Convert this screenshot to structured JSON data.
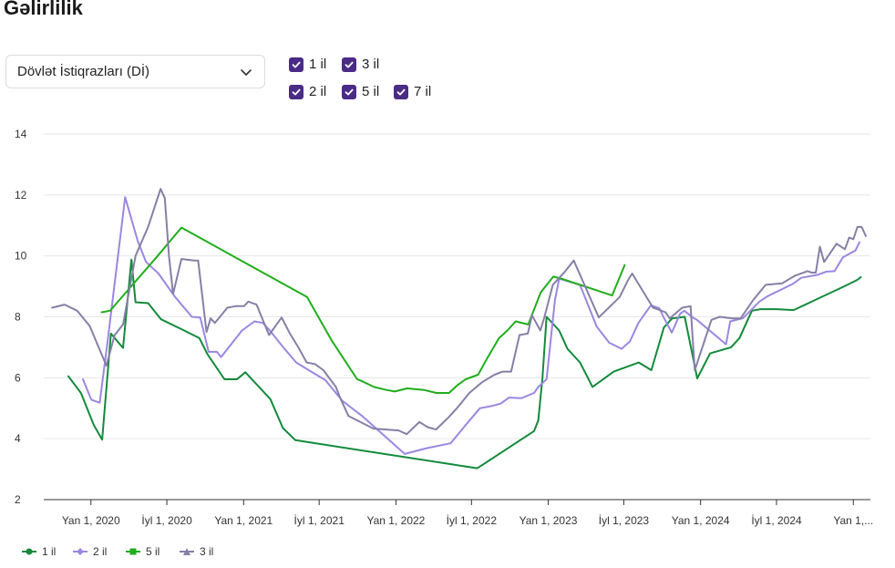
{
  "page": {
    "title": "Gəlirlilik"
  },
  "controls": {
    "select_value": "Dövlət İstiqrazları (Dİ)",
    "checkboxes": [
      {
        "label": "1 il",
        "checked": true
      },
      {
        "label": "3 il",
        "checked": true
      },
      {
        "label": "2 il",
        "checked": true
      },
      {
        "label": "5 il",
        "checked": true
      },
      {
        "label": "7 il",
        "checked": true
      }
    ]
  },
  "colors": {
    "1 il": "#138a3c",
    "2 il": "#9b87e0",
    "5 il": "#20ad1c",
    "3 il": "#8580a6",
    "checkbox": "#4a2b86"
  },
  "chart_data": {
    "type": "line",
    "y_ticks": [
      "2",
      "4",
      "6",
      "8",
      "10",
      "12",
      "14"
    ],
    "ylim": [
      2,
      14
    ],
    "x_ticks": [
      {
        "label": "Yan 1, 2020",
        "x": "2020-01-01"
      },
      {
        "label": "İyl 1, 2020",
        "x": "2020-07-01"
      },
      {
        "label": "Yan 1, 2021",
        "x": "2021-01-01"
      },
      {
        "label": "İyl 1, 2021",
        "x": "2021-07-01"
      },
      {
        "label": "Yan 1, 2022",
        "x": "2022-01-01"
      },
      {
        "label": "İyl 1, 2022",
        "x": "2022-07-01"
      },
      {
        "label": "Yan 1, 2023",
        "x": "2023-01-01"
      },
      {
        "label": "İyl 1, 2023",
        "x": "2023-07-01"
      },
      {
        "label": "Yan 1, 2024",
        "x": "2024-01-01"
      },
      {
        "label": "İyl 1, 2024",
        "x": "2024-07-01"
      },
      {
        "label": "Yan 1,...",
        "x": "2025-01-01"
      }
    ],
    "xlim": [
      "2019-09-10",
      "2025-01-31"
    ],
    "grid": true,
    "legend_position": "bottom-left",
    "series": [
      {
        "name": "1 il",
        "marker": "circle",
        "points": [
          [
            "2019-11-08",
            6.05
          ],
          [
            "2019-12-08",
            5.5
          ],
          [
            "2020-01-08",
            4.45
          ],
          [
            "2020-01-28",
            3.97
          ],
          [
            "2020-02-18",
            7.45
          ],
          [
            "2020-03-18",
            6.98
          ],
          [
            "2020-04-07",
            9.88
          ],
          [
            "2020-04-17",
            8.48
          ],
          [
            "2020-05-17",
            8.45
          ],
          [
            "2020-06-17",
            7.92
          ],
          [
            "2020-08-07",
            7.58
          ],
          [
            "2020-09-17",
            7.3
          ],
          [
            "2020-10-06",
            6.78
          ],
          [
            "2020-11-16",
            5.95
          ],
          [
            "2020-12-16",
            5.95
          ],
          [
            "2021-01-05",
            6.18
          ],
          [
            "2021-03-06",
            5.3
          ],
          [
            "2021-04-05",
            4.35
          ],
          [
            "2021-05-05",
            3.95
          ],
          [
            "2022-07-15",
            3.03
          ],
          [
            "2022-11-28",
            4.25
          ],
          [
            "2022-12-08",
            4.6
          ],
          [
            "2022-12-18",
            6.0
          ],
          [
            "2022-12-28",
            8.0
          ],
          [
            "2023-01-27",
            7.55
          ],
          [
            "2023-02-16",
            6.95
          ],
          [
            "2023-03-18",
            6.5
          ],
          [
            "2023-04-17",
            5.7
          ],
          [
            "2023-06-07",
            6.2
          ],
          [
            "2023-08-06",
            6.5
          ],
          [
            "2023-09-05",
            6.25
          ],
          [
            "2023-10-05",
            7.65
          ],
          [
            "2023-10-25",
            7.95
          ],
          [
            "2023-11-24",
            8.0
          ],
          [
            "2023-12-24",
            5.98
          ],
          [
            "2024-01-24",
            6.8
          ],
          [
            "2024-03-14",
            7.0
          ],
          [
            "2024-04-03",
            7.3
          ],
          [
            "2024-05-03",
            8.2
          ],
          [
            "2024-05-23",
            8.25
          ],
          [
            "2024-07-02",
            8.25
          ],
          [
            "2024-08-11",
            8.22
          ],
          [
            "2024-12-10",
            9.0
          ],
          [
            "2025-01-09",
            9.2
          ],
          [
            "2025-01-19",
            9.3
          ]
        ]
      },
      {
        "name": "2 il",
        "marker": "diamond",
        "points": [
          [
            "2019-12-13",
            5.95
          ],
          [
            "2020-01-02",
            5.28
          ],
          [
            "2020-01-22",
            5.18
          ],
          [
            "2020-02-11",
            7.3
          ],
          [
            "2020-03-23",
            11.93
          ],
          [
            "2020-04-22",
            10.5
          ],
          [
            "2020-05-12",
            9.8
          ],
          [
            "2020-06-11",
            9.42
          ],
          [
            "2020-07-21",
            8.65
          ],
          [
            "2020-08-30",
            8.0
          ],
          [
            "2020-09-19",
            7.98
          ],
          [
            "2020-10-09",
            6.85
          ],
          [
            "2020-10-29",
            6.85
          ],
          [
            "2020-11-08",
            6.68
          ],
          [
            "2020-12-28",
            7.55
          ],
          [
            "2021-01-27",
            7.85
          ],
          [
            "2021-02-16",
            7.8
          ],
          [
            "2021-03-08",
            7.5
          ],
          [
            "2021-04-07",
            6.98
          ],
          [
            "2021-05-07",
            6.5
          ],
          [
            "2021-06-06",
            6.25
          ],
          [
            "2021-07-16",
            5.92
          ],
          [
            "2021-08-25",
            5.25
          ],
          [
            "2021-10-14",
            4.72
          ],
          [
            "2022-01-22",
            3.5
          ],
          [
            "2022-03-13",
            3.68
          ],
          [
            "2022-05-12",
            3.85
          ],
          [
            "2022-06-11",
            4.35
          ],
          [
            "2022-07-21",
            5.0
          ],
          [
            "2022-08-20",
            5.08
          ],
          [
            "2022-09-09",
            5.15
          ],
          [
            "2022-09-29",
            5.35
          ],
          [
            "2022-10-29",
            5.33
          ],
          [
            "2022-11-28",
            5.5
          ],
          [
            "2022-12-08",
            5.7
          ],
          [
            "2022-12-28",
            5.95
          ],
          [
            "2023-01-17",
            8.55
          ],
          [
            "2023-01-27",
            9.25
          ],
          [
            "2023-03-18",
            9.05
          ],
          [
            "2023-04-27",
            7.68
          ],
          [
            "2023-05-27",
            7.15
          ],
          [
            "2023-06-26",
            6.95
          ],
          [
            "2023-07-16",
            7.2
          ],
          [
            "2023-08-05",
            7.8
          ],
          [
            "2023-09-04",
            8.38
          ],
          [
            "2023-09-24",
            8.28
          ],
          [
            "2023-10-04",
            8.0
          ],
          [
            "2023-10-24",
            7.48
          ],
          [
            "2023-11-13",
            8.1
          ],
          [
            "2023-11-23",
            8.2
          ],
          [
            "2023-12-13",
            7.98
          ],
          [
            "2023-12-23",
            7.9
          ],
          [
            "2024-03-02",
            7.1
          ],
          [
            "2024-03-12",
            7.85
          ],
          [
            "2024-04-11",
            7.95
          ],
          [
            "2024-05-01",
            8.22
          ],
          [
            "2024-05-21",
            8.5
          ],
          [
            "2024-06-10",
            8.68
          ],
          [
            "2024-08-09",
            9.08
          ],
          [
            "2024-08-29",
            9.28
          ],
          [
            "2024-10-08",
            9.38
          ],
          [
            "2024-10-28",
            9.48
          ],
          [
            "2024-11-17",
            9.5
          ],
          [
            "2024-12-07",
            9.95
          ],
          [
            "2024-12-27",
            10.1
          ],
          [
            "2025-01-06",
            10.18
          ],
          [
            "2025-01-16",
            10.45
          ]
        ]
      },
      {
        "name": "5 il",
        "marker": "square",
        "points": [
          [
            "2020-01-27",
            8.15
          ],
          [
            "2020-02-16",
            8.2
          ],
          [
            "2020-06-06",
            9.95
          ],
          [
            "2020-08-05",
            10.93
          ],
          [
            "2021-06-02",
            8.65
          ],
          [
            "2021-08-01",
            7.2
          ],
          [
            "2021-09-30",
            5.95
          ],
          [
            "2021-10-10",
            5.9
          ],
          [
            "2021-11-09",
            5.7
          ],
          [
            "2021-12-09",
            5.6
          ],
          [
            "2021-12-29",
            5.55
          ],
          [
            "2022-01-28",
            5.65
          ],
          [
            "2022-03-09",
            5.6
          ],
          [
            "2022-04-08",
            5.5
          ],
          [
            "2022-05-08",
            5.5
          ],
          [
            "2022-05-28",
            5.75
          ],
          [
            "2022-06-17",
            5.95
          ],
          [
            "2022-07-17",
            6.1
          ],
          [
            "2022-08-06",
            6.6
          ],
          [
            "2022-09-05",
            7.3
          ],
          [
            "2022-09-25",
            7.55
          ],
          [
            "2022-10-15",
            7.85
          ],
          [
            "2022-11-14",
            7.75
          ],
          [
            "2022-12-14",
            8.8
          ],
          [
            "2023-01-13",
            9.32
          ],
          [
            "2023-02-02",
            9.25
          ],
          [
            "2023-06-03",
            8.7
          ],
          [
            "2023-07-03",
            9.7
          ]
        ]
      },
      {
        "name": "3 il",
        "marker": "triangle",
        "points": [
          [
            "2019-09-30",
            8.3
          ],
          [
            "2019-10-30",
            8.4
          ],
          [
            "2019-11-29",
            8.2
          ],
          [
            "2019-12-29",
            7.7
          ],
          [
            "2020-02-07",
            6.4
          ],
          [
            "2020-02-27",
            7.4
          ],
          [
            "2020-03-18",
            7.75
          ],
          [
            "2020-04-17",
            10.0
          ],
          [
            "2020-05-17",
            10.95
          ],
          [
            "2020-06-16",
            12.2
          ],
          [
            "2020-06-26",
            11.9
          ],
          [
            "2020-07-06",
            10.0
          ],
          [
            "2020-07-16",
            8.75
          ],
          [
            "2020-08-05",
            9.9
          ],
          [
            "2020-09-04",
            9.85
          ],
          [
            "2020-09-14",
            9.85
          ],
          [
            "2020-10-04",
            7.5
          ],
          [
            "2020-10-14",
            7.95
          ],
          [
            "2020-10-24",
            7.8
          ],
          [
            "2020-11-23",
            8.3
          ],
          [
            "2020-12-13",
            8.35
          ],
          [
            "2021-01-02",
            8.35
          ],
          [
            "2021-01-12",
            8.5
          ],
          [
            "2021-02-01",
            8.4
          ],
          [
            "2021-03-03",
            7.4
          ],
          [
            "2021-04-02",
            7.98
          ],
          [
            "2021-04-22",
            7.45
          ],
          [
            "2021-05-12",
            7.0
          ],
          [
            "2021-06-01",
            6.5
          ],
          [
            "2021-06-21",
            6.45
          ],
          [
            "2021-07-11",
            6.25
          ],
          [
            "2021-08-10",
            5.7
          ],
          [
            "2021-08-20",
            5.35
          ],
          [
            "2021-09-09",
            4.75
          ],
          [
            "2021-11-08",
            4.33
          ],
          [
            "2022-01-07",
            4.27
          ],
          [
            "2022-01-27",
            4.15
          ],
          [
            "2022-02-26",
            4.55
          ],
          [
            "2022-03-18",
            4.38
          ],
          [
            "2022-04-07",
            4.3
          ],
          [
            "2022-05-07",
            4.7
          ],
          [
            "2022-05-27",
            5.0
          ],
          [
            "2022-06-26",
            5.5
          ],
          [
            "2022-07-26",
            5.85
          ],
          [
            "2022-08-25",
            6.1
          ],
          [
            "2022-09-14",
            6.2
          ],
          [
            "2022-10-04",
            6.2
          ],
          [
            "2022-10-24",
            7.4
          ],
          [
            "2022-11-13",
            7.45
          ],
          [
            "2022-11-23",
            8.05
          ],
          [
            "2022-12-13",
            7.55
          ],
          [
            "2022-12-23",
            8.0
          ],
          [
            "2023-01-12",
            9.05
          ],
          [
            "2023-02-11",
            9.5
          ],
          [
            "2023-03-03",
            9.85
          ],
          [
            "2023-05-02",
            7.98
          ],
          [
            "2023-06-21",
            8.65
          ],
          [
            "2023-07-11",
            9.2
          ],
          [
            "2023-07-21",
            9.42
          ],
          [
            "2023-09-09",
            8.3
          ],
          [
            "2023-09-19",
            8.25
          ],
          [
            "2023-10-09",
            8.15
          ],
          [
            "2023-10-19",
            7.95
          ],
          [
            "2023-11-18",
            8.3
          ],
          [
            "2023-12-08",
            8.35
          ],
          [
            "2023-12-18",
            6.25
          ],
          [
            "2024-01-27",
            7.9
          ],
          [
            "2024-02-16",
            8.0
          ],
          [
            "2024-03-17",
            7.95
          ],
          [
            "2024-04-06",
            7.95
          ],
          [
            "2024-05-06",
            8.55
          ],
          [
            "2024-06-05",
            9.05
          ],
          [
            "2024-07-15",
            9.1
          ],
          [
            "2024-08-14",
            9.35
          ],
          [
            "2024-09-13",
            9.5
          ],
          [
            "2024-09-23",
            9.45
          ],
          [
            "2024-10-03",
            9.45
          ],
          [
            "2024-10-13",
            10.3
          ],
          [
            "2024-10-23",
            9.8
          ],
          [
            "2024-11-22",
            10.4
          ],
          [
            "2024-12-12",
            10.22
          ],
          [
            "2024-12-22",
            10.6
          ],
          [
            "2025-01-01",
            10.55
          ],
          [
            "2025-01-11",
            10.95
          ],
          [
            "2025-01-21",
            10.95
          ],
          [
            "2025-01-31",
            10.65
          ]
        ]
      }
    ]
  }
}
